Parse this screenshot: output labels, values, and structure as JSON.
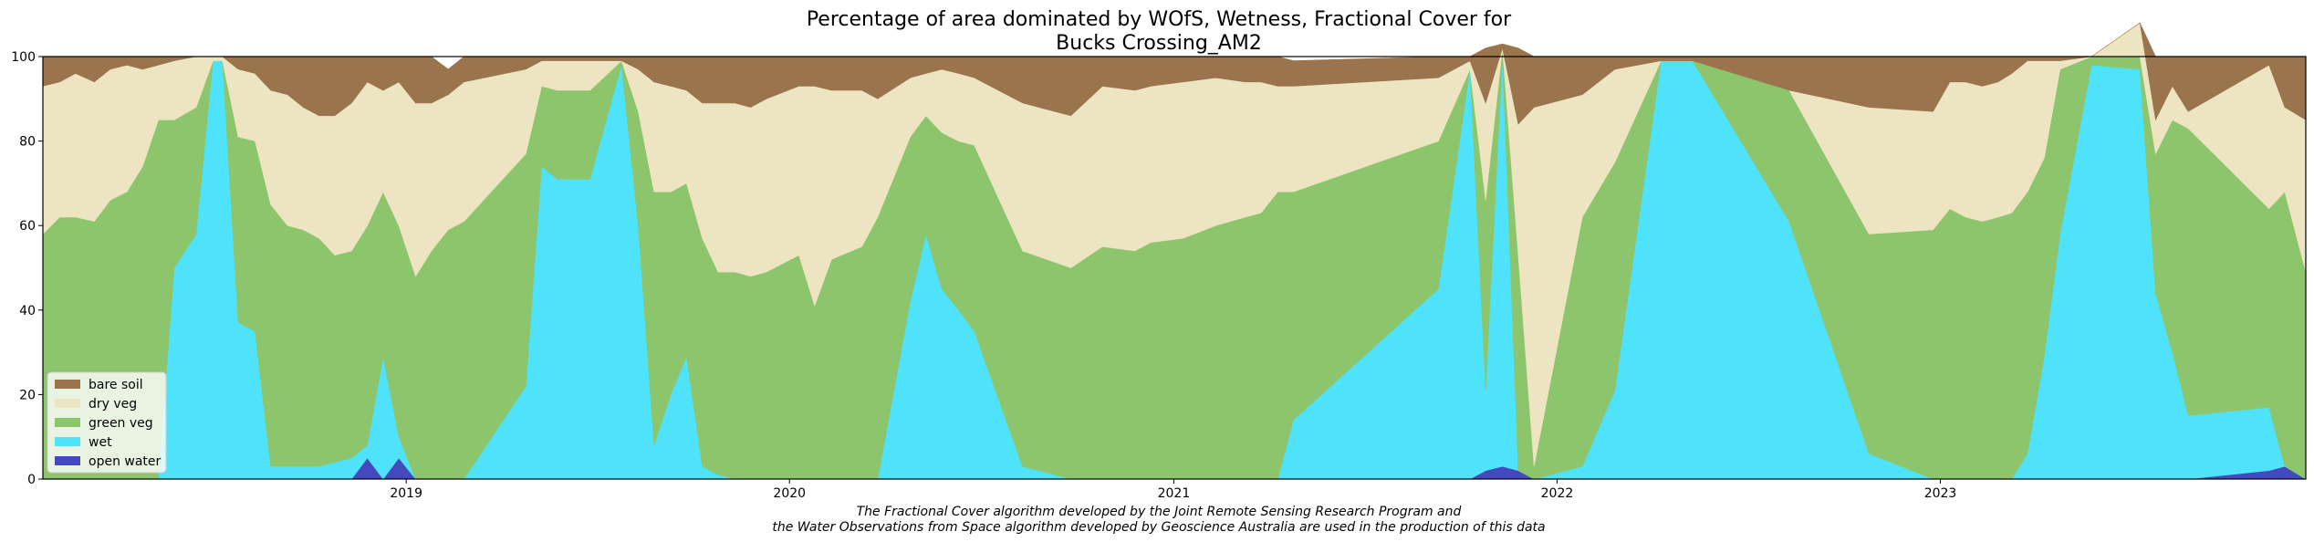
{
  "chart_data": {
    "type": "area",
    "title_line1": "Percentage of area dominated by WOfS, Wetness, Fractional Cover for",
    "title_line2": "Bucks Crossing_AM2",
    "xlabel": "",
    "ylabel": "",
    "stacked": true,
    "ylim": [
      0,
      100
    ],
    "xlim": [
      "2018-01-20",
      "2023-12-15"
    ],
    "y_ticks": [
      0,
      20,
      40,
      60,
      80,
      100
    ],
    "x_ticks": [
      {
        "date": "2019-01-01",
        "label": "2019"
      },
      {
        "date": "2020-01-01",
        "label": "2020"
      },
      {
        "date": "2021-01-01",
        "label": "2021"
      },
      {
        "date": "2022-01-01",
        "label": "2022"
      },
      {
        "date": "2023-01-01",
        "label": "2023"
      }
    ],
    "legend_position": "lower-left",
    "legend": [
      "bare soil",
      "dry veg",
      "green veg",
      "wet",
      "open water"
    ],
    "colors": {
      "bare soil": "#99744c",
      "dry veg": "#ede4c2",
      "green veg": "#8dc56c",
      "wet": "#4fe3fb",
      "open water": "#4449bd"
    },
    "x": [
      "2018-01-20",
      "2018-02-05",
      "2018-02-20",
      "2018-03-10",
      "2018-03-25",
      "2018-04-10",
      "2018-04-25",
      "2018-05-10",
      "2018-05-25",
      "2018-06-15",
      "2018-07-01",
      "2018-07-10",
      "2018-07-25",
      "2018-08-10",
      "2018-08-25",
      "2018-09-10",
      "2018-09-25",
      "2018-10-10",
      "2018-10-25",
      "2018-11-10",
      "2018-11-25",
      "2018-12-10",
      "2018-12-25",
      "2019-01-10",
      "2019-01-25",
      "2019-02-10",
      "2019-02-25",
      "2019-04-25",
      "2019-05-10",
      "2019-05-25",
      "2019-06-25",
      "2019-07-25",
      "2019-08-10",
      "2019-08-25",
      "2019-09-10",
      "2019-09-25",
      "2019-10-10",
      "2019-10-25",
      "2019-11-10",
      "2019-11-25",
      "2019-12-10",
      "2020-01-10",
      "2020-01-25",
      "2020-02-10",
      "2020-03-10",
      "2020-03-25",
      "2020-04-25",
      "2020-05-10",
      "2020-05-25",
      "2020-06-10",
      "2020-06-25",
      "2020-08-10",
      "2020-09-25",
      "2020-10-25",
      "2020-11-25",
      "2020-12-10",
      "2021-01-10",
      "2021-02-10",
      "2021-03-10",
      "2021-03-25",
      "2021-04-10",
      "2021-04-25",
      "2021-09-10",
      "2021-10-10",
      "2021-10-25",
      "2021-11-10",
      "2021-11-25",
      "2021-12-10",
      "2022-01-25",
      "2022-02-25",
      "2022-04-10",
      "2022-05-10",
      "2022-08-10",
      "2022-10-25",
      "2022-12-25",
      "2023-01-10",
      "2023-01-25",
      "2023-02-10",
      "2023-02-25",
      "2023-03-10",
      "2023-03-25",
      "2023-04-10",
      "2023-04-25",
      "2023-05-25",
      "2023-07-10",
      "2023-07-25",
      "2023-08-10",
      "2023-08-25",
      "2023-11-10",
      "2023-11-25",
      "2023-12-15"
    ],
    "series": [
      {
        "name": "open water",
        "values": [
          0,
          0,
          0,
          0,
          0,
          0,
          0,
          0,
          0,
          0,
          0,
          0,
          0,
          0,
          0,
          0,
          0,
          0,
          0,
          0,
          5,
          0,
          5,
          0,
          0,
          0,
          0,
          0,
          0,
          0,
          0,
          0,
          0,
          0,
          0,
          0,
          0,
          0,
          0,
          0,
          0,
          0,
          0,
          0,
          0,
          0,
          0,
          0,
          0,
          0,
          0,
          0,
          0,
          0,
          0,
          0,
          0,
          0,
          0,
          0,
          0,
          0,
          0,
          0,
          2,
          3,
          2,
          0,
          0,
          0,
          0,
          0,
          0,
          0,
          0,
          0,
          0,
          0,
          0,
          0,
          0,
          0,
          0,
          0,
          0,
          0,
          0,
          0,
          2,
          3,
          0
        ]
      },
      {
        "name": "wet",
        "values": [
          0,
          0,
          0,
          0,
          0,
          0,
          0,
          0,
          50,
          58,
          99,
          99,
          37,
          35,
          3,
          3,
          3,
          3,
          4,
          5,
          3,
          29,
          5,
          0,
          0,
          0,
          0,
          22,
          74,
          71,
          71,
          98,
          60,
          8,
          20,
          29,
          3,
          1,
          0,
          0,
          0,
          0,
          0,
          0,
          0,
          0,
          42,
          58,
          45,
          40,
          35,
          3,
          0,
          0,
          0,
          0,
          0,
          0,
          0,
          0,
          0,
          14,
          45,
          97,
          19,
          97,
          0,
          0,
          3,
          21,
          99,
          99,
          61,
          6,
          0,
          0,
          0,
          0,
          0,
          0,
          6,
          29,
          58,
          98,
          97,
          44,
          30,
          15,
          15,
          0,
          0
        ]
      },
      {
        "name": "green veg",
        "values": [
          58,
          62,
          62,
          61,
          66,
          68,
          74,
          85,
          35,
          30,
          0,
          0,
          44,
          45,
          62,
          57,
          56,
          54,
          49,
          49,
          52,
          39,
          50,
          48,
          54,
          59,
          61,
          55,
          19,
          21,
          21,
          1,
          27,
          60,
          48,
          41,
          54,
          48,
          49,
          48,
          49,
          53,
          41,
          52,
          55,
          62,
          39,
          28,
          37,
          40,
          44,
          51,
          50,
          55,
          54,
          56,
          57,
          60,
          62,
          63,
          68,
          54,
          35,
          0,
          45,
          2,
          51,
          3,
          59,
          54,
          0,
          0,
          31,
          52,
          59,
          64,
          62,
          61,
          62,
          63,
          62,
          47,
          39,
          2,
          3,
          33,
          55,
          68,
          47,
          65,
          49
        ]
      },
      {
        "name": "dry veg",
        "values": [
          35,
          32,
          34,
          33,
          31,
          30,
          23,
          13,
          14,
          12,
          1,
          1,
          16,
          16,
          27,
          31,
          29,
          29,
          33,
          35,
          34,
          24,
          34,
          41,
          35,
          32,
          33,
          20,
          6,
          7,
          7,
          0,
          10,
          26,
          25,
          22,
          32,
          40,
          40,
          40,
          41,
          40,
          52,
          40,
          37,
          28,
          14,
          10,
          15,
          16,
          16,
          35,
          36,
          38,
          38,
          37,
          37,
          35,
          32,
          31,
          25,
          25,
          15,
          2,
          23,
          0,
          31,
          85,
          29,
          22,
          0,
          0,
          0,
          30,
          28,
          30,
          32,
          32,
          32,
          33,
          31,
          23,
          2,
          0,
          8,
          8,
          8,
          4,
          34,
          20,
          36
        ]
      },
      {
        "name": "bare soil",
        "values": [
          7,
          6,
          4,
          6,
          3,
          2,
          3,
          2,
          1,
          0,
          0,
          0,
          3,
          4,
          8,
          9,
          12,
          14,
          14,
          11,
          6,
          8,
          6,
          11,
          11,
          6,
          6,
          3,
          1,
          1,
          1,
          1,
          3,
          6,
          7,
          8,
          11,
          11,
          11,
          12,
          10,
          7,
          7,
          8,
          8,
          10,
          5,
          4,
          3,
          4,
          5,
          11,
          14,
          7,
          8,
          7,
          6,
          5,
          6,
          6,
          7,
          6,
          5,
          1,
          13,
          1,
          18,
          12,
          9,
          3,
          1,
          1,
          8,
          12,
          13,
          6,
          6,
          7,
          6,
          4,
          1,
          1,
          1,
          0,
          0,
          15,
          7,
          13,
          2,
          12,
          15
        ]
      }
    ],
    "caption_line1": "The Fractional Cover algorithm developed by the Joint Remote Sensing Research Program and",
    "caption_line2": "the Water Observations from Space algorithm developed by Geoscience Australia are used in the production of this data"
  }
}
